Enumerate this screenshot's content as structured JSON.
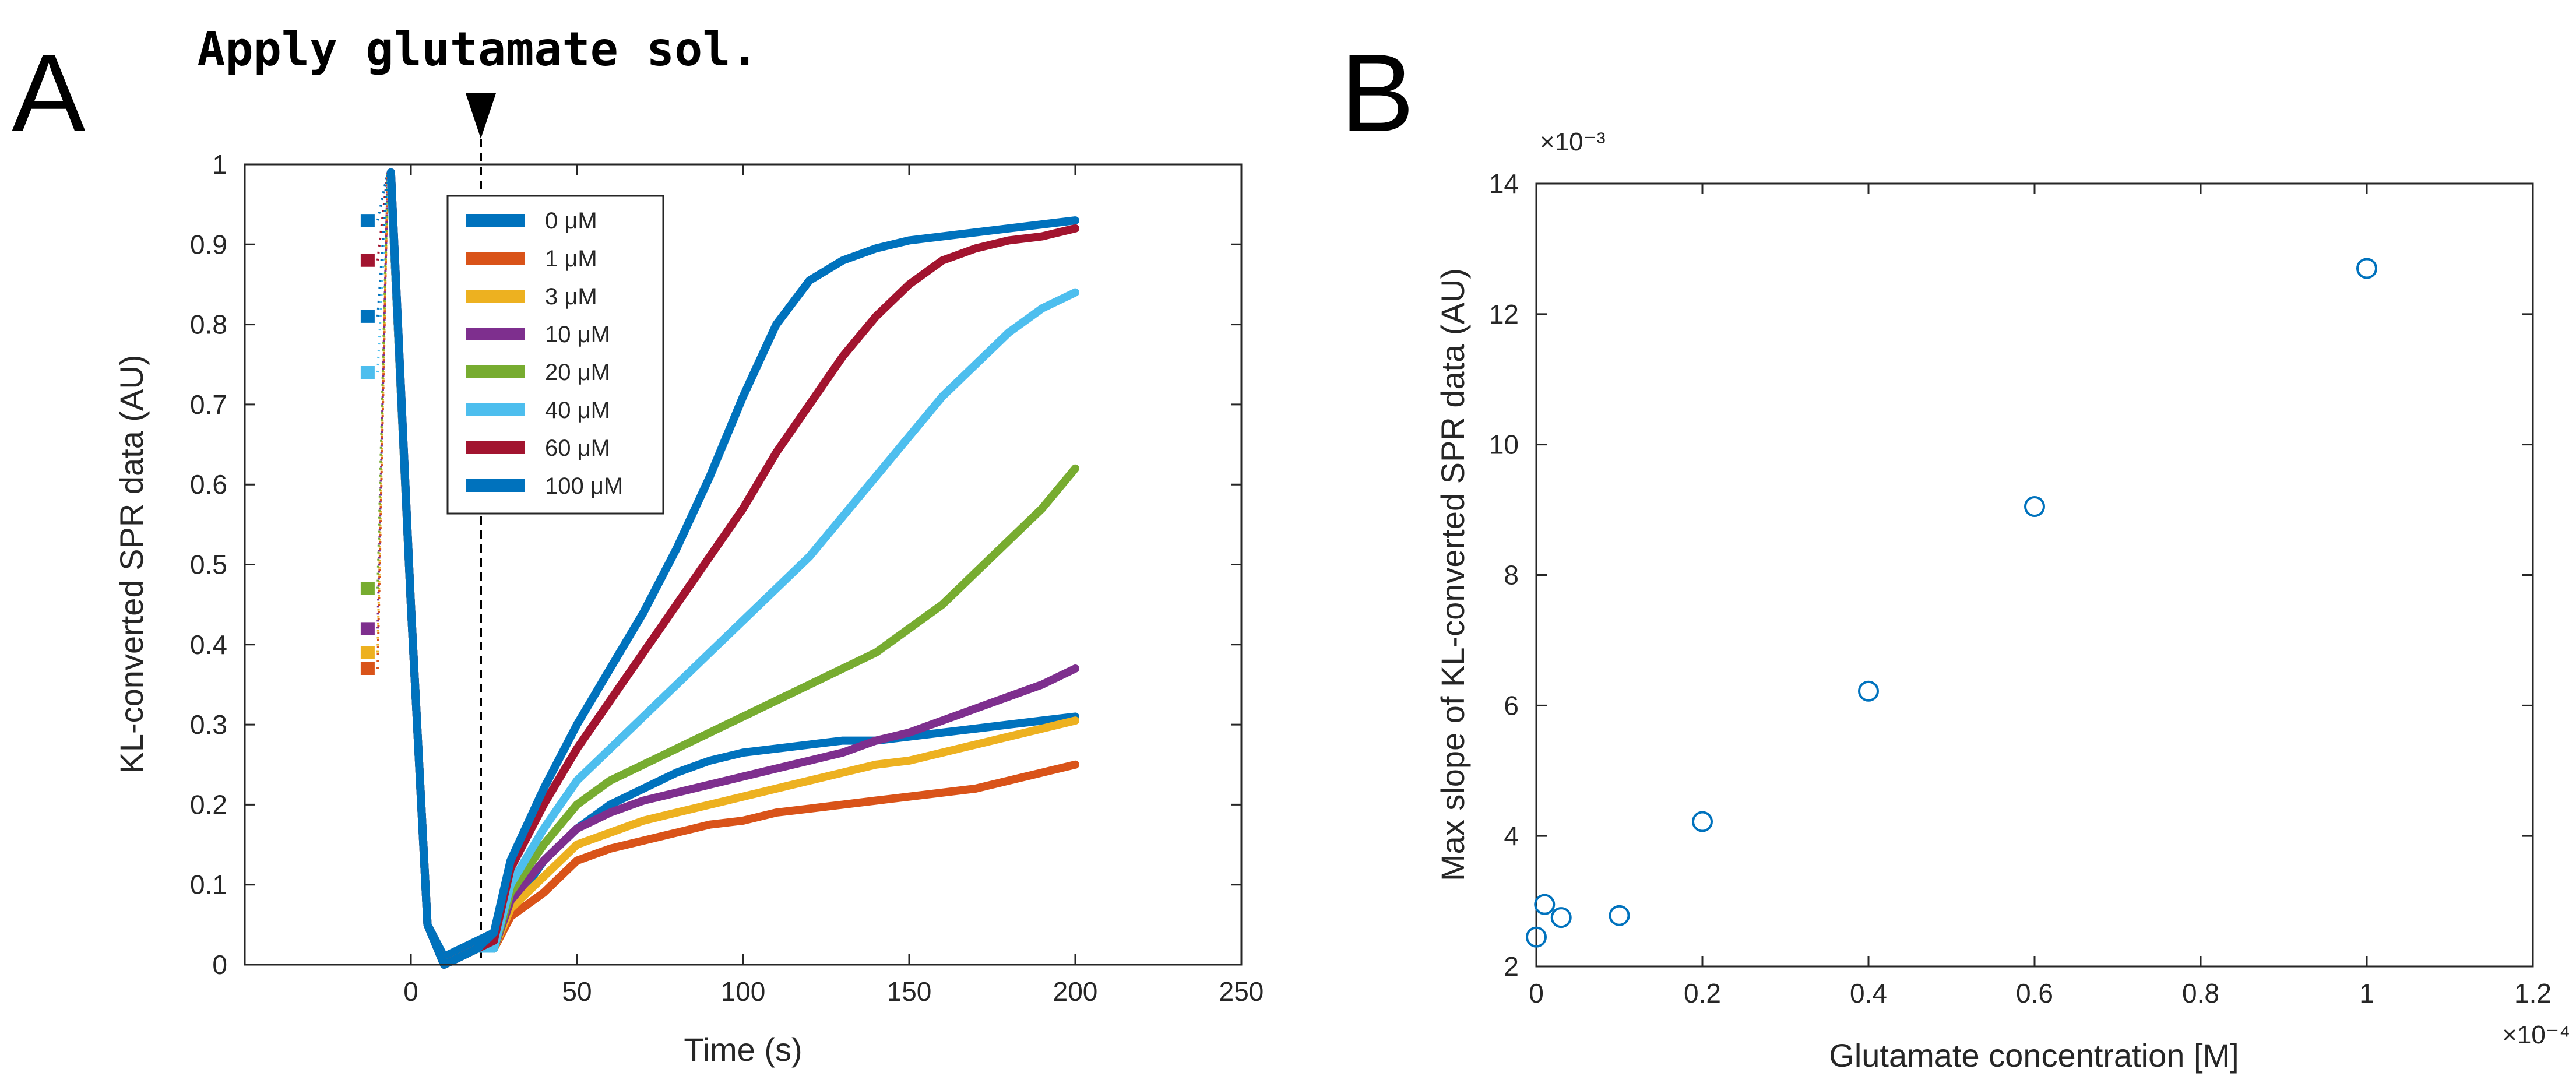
{
  "panels": {
    "a_label": "A",
    "b_label": "B"
  },
  "annotation": "Apply glutamate sol.",
  "chart_data": [
    {
      "type": "line",
      "panel": "A",
      "xlabel": "Time (s)",
      "ylabel": "KL-converted SPR data (AU)",
      "xlim": [
        -50,
        250
      ],
      "ylim": [
        0,
        1
      ],
      "x_ticks": [
        0,
        50,
        100,
        150,
        200,
        250
      ],
      "y_ticks": [
        0,
        0.1,
        0.2,
        0.3,
        0.4,
        0.5,
        0.6,
        0.7,
        0.8,
        0.9,
        1
      ],
      "annotation_x": 20,
      "legend_position": "upper-left inside",
      "series": [
        {
          "name": "0 μM",
          "color": "#0072BD",
          "x": [
            -13,
            -6,
            0,
            5,
            10,
            15,
            20,
            25,
            30,
            40,
            50,
            60,
            70,
            80,
            90,
            100,
            110,
            120,
            130,
            140,
            150,
            160,
            170,
            180,
            190,
            200
          ],
          "y": [
            0.93,
            0.99,
            0.45,
            0.05,
            0.01,
            0.02,
            0.03,
            0.04,
            0.07,
            0.13,
            0.17,
            0.2,
            0.22,
            0.24,
            0.255,
            0.265,
            0.27,
            0.275,
            0.28,
            0.28,
            0.285,
            0.29,
            0.295,
            0.3,
            0.305,
            0.31
          ]
        },
        {
          "name": "1 μM",
          "color": "#D95319",
          "x": [
            -13,
            -6,
            0,
            5,
            10,
            15,
            20,
            25,
            30,
            40,
            50,
            60,
            70,
            80,
            90,
            100,
            110,
            120,
            130,
            140,
            150,
            160,
            170,
            180,
            190,
            200
          ],
          "y": [
            0.37,
            0.98,
            0.45,
            0.05,
            0.0,
            0.01,
            0.02,
            0.02,
            0.06,
            0.09,
            0.13,
            0.145,
            0.155,
            0.165,
            0.175,
            0.18,
            0.19,
            0.195,
            0.2,
            0.205,
            0.21,
            0.215,
            0.22,
            0.23,
            0.24,
            0.25
          ]
        },
        {
          "name": "3 μM",
          "color": "#EDB120",
          "x": [
            -13,
            -6,
            0,
            5,
            10,
            15,
            20,
            25,
            30,
            40,
            50,
            60,
            70,
            80,
            90,
            100,
            110,
            120,
            130,
            140,
            150,
            160,
            170,
            180,
            190,
            200
          ],
          "y": [
            0.39,
            0.98,
            0.45,
            0.05,
            0.0,
            0.01,
            0.02,
            0.02,
            0.07,
            0.11,
            0.15,
            0.165,
            0.18,
            0.19,
            0.2,
            0.21,
            0.22,
            0.23,
            0.24,
            0.25,
            0.255,
            0.265,
            0.275,
            0.285,
            0.295,
            0.305
          ]
        },
        {
          "name": "10 μM",
          "color": "#7E2F8E",
          "x": [
            -13,
            -6,
            0,
            5,
            10,
            15,
            20,
            25,
            30,
            40,
            50,
            60,
            70,
            80,
            90,
            100,
            110,
            120,
            130,
            140,
            150,
            160,
            170,
            180,
            190,
            200
          ],
          "y": [
            0.42,
            0.98,
            0.45,
            0.05,
            0.0,
            0.01,
            0.02,
            0.02,
            0.08,
            0.13,
            0.17,
            0.19,
            0.205,
            0.215,
            0.225,
            0.235,
            0.245,
            0.255,
            0.265,
            0.28,
            0.29,
            0.305,
            0.32,
            0.335,
            0.35,
            0.37
          ]
        },
        {
          "name": "20 μM",
          "color": "#77AC30",
          "x": [
            -13,
            -6,
            0,
            5,
            10,
            15,
            20,
            25,
            30,
            40,
            50,
            60,
            70,
            80,
            90,
            100,
            110,
            120,
            130,
            140,
            150,
            160,
            170,
            180,
            190,
            200
          ],
          "y": [
            0.47,
            0.98,
            0.45,
            0.05,
            0.0,
            0.01,
            0.02,
            0.02,
            0.09,
            0.15,
            0.2,
            0.23,
            0.25,
            0.27,
            0.29,
            0.31,
            0.33,
            0.35,
            0.37,
            0.39,
            0.42,
            0.45,
            0.49,
            0.53,
            0.57,
            0.62
          ]
        },
        {
          "name": "40 μM",
          "color": "#4DBEEE",
          "x": [
            -13,
            -6,
            0,
            5,
            10,
            15,
            20,
            25,
            30,
            40,
            50,
            60,
            70,
            80,
            90,
            100,
            110,
            120,
            130,
            140,
            150,
            160,
            170,
            180,
            190,
            200
          ],
          "y": [
            0.74,
            0.98,
            0.45,
            0.05,
            0.0,
            0.01,
            0.02,
            0.02,
            0.1,
            0.17,
            0.23,
            0.27,
            0.31,
            0.35,
            0.39,
            0.43,
            0.47,
            0.51,
            0.56,
            0.61,
            0.66,
            0.71,
            0.75,
            0.79,
            0.82,
            0.84
          ]
        },
        {
          "name": "60 μM",
          "color": "#A2142F",
          "x": [
            -13,
            -6,
            0,
            5,
            10,
            15,
            20,
            25,
            30,
            40,
            50,
            60,
            70,
            80,
            90,
            100,
            110,
            120,
            130,
            140,
            150,
            160,
            170,
            180,
            190,
            200
          ],
          "y": [
            0.88,
            0.99,
            0.45,
            0.05,
            0.0,
            0.01,
            0.02,
            0.03,
            0.12,
            0.2,
            0.27,
            0.33,
            0.39,
            0.45,
            0.51,
            0.57,
            0.64,
            0.7,
            0.76,
            0.81,
            0.85,
            0.88,
            0.895,
            0.905,
            0.91,
            0.92
          ]
        },
        {
          "name": "100 μM",
          "color": "#0072BD",
          "x": [
            -13,
            -6,
            0,
            5,
            10,
            15,
            20,
            25,
            30,
            40,
            50,
            60,
            70,
            80,
            90,
            100,
            110,
            120,
            130,
            140,
            150,
            160,
            170,
            180,
            190,
            200
          ],
          "y": [
            0.81,
            0.99,
            0.45,
            0.05,
            0.0,
            0.01,
            0.02,
            0.04,
            0.13,
            0.22,
            0.3,
            0.37,
            0.44,
            0.52,
            0.61,
            0.71,
            0.8,
            0.855,
            0.88,
            0.895,
            0.905,
            0.91,
            0.915,
            0.92,
            0.925,
            0.93
          ]
        }
      ]
    },
    {
      "type": "scatter",
      "panel": "B",
      "xlabel": "Glutamate concentration [M]",
      "ylabel": "Max slope of KL-converted SPR data (AU)",
      "x_multiplier": "×10⁻⁴",
      "y_multiplier": "×10⁻³",
      "xlim": [
        0,
        1.2
      ],
      "ylim": [
        2,
        14
      ],
      "x_ticks": [
        0,
        0.2,
        0.4,
        0.6,
        0.8,
        1,
        1.2
      ],
      "y_ticks": [
        2,
        4,
        6,
        8,
        10,
        12,
        14
      ],
      "marker_color": "#0072BD",
      "x": [
        0,
        0.01,
        0.03,
        0.1,
        0.2,
        0.4,
        0.6,
        1.0
      ],
      "y": [
        2.45,
        2.95,
        2.75,
        2.78,
        4.22,
        6.22,
        9.05,
        12.7
      ]
    }
  ]
}
